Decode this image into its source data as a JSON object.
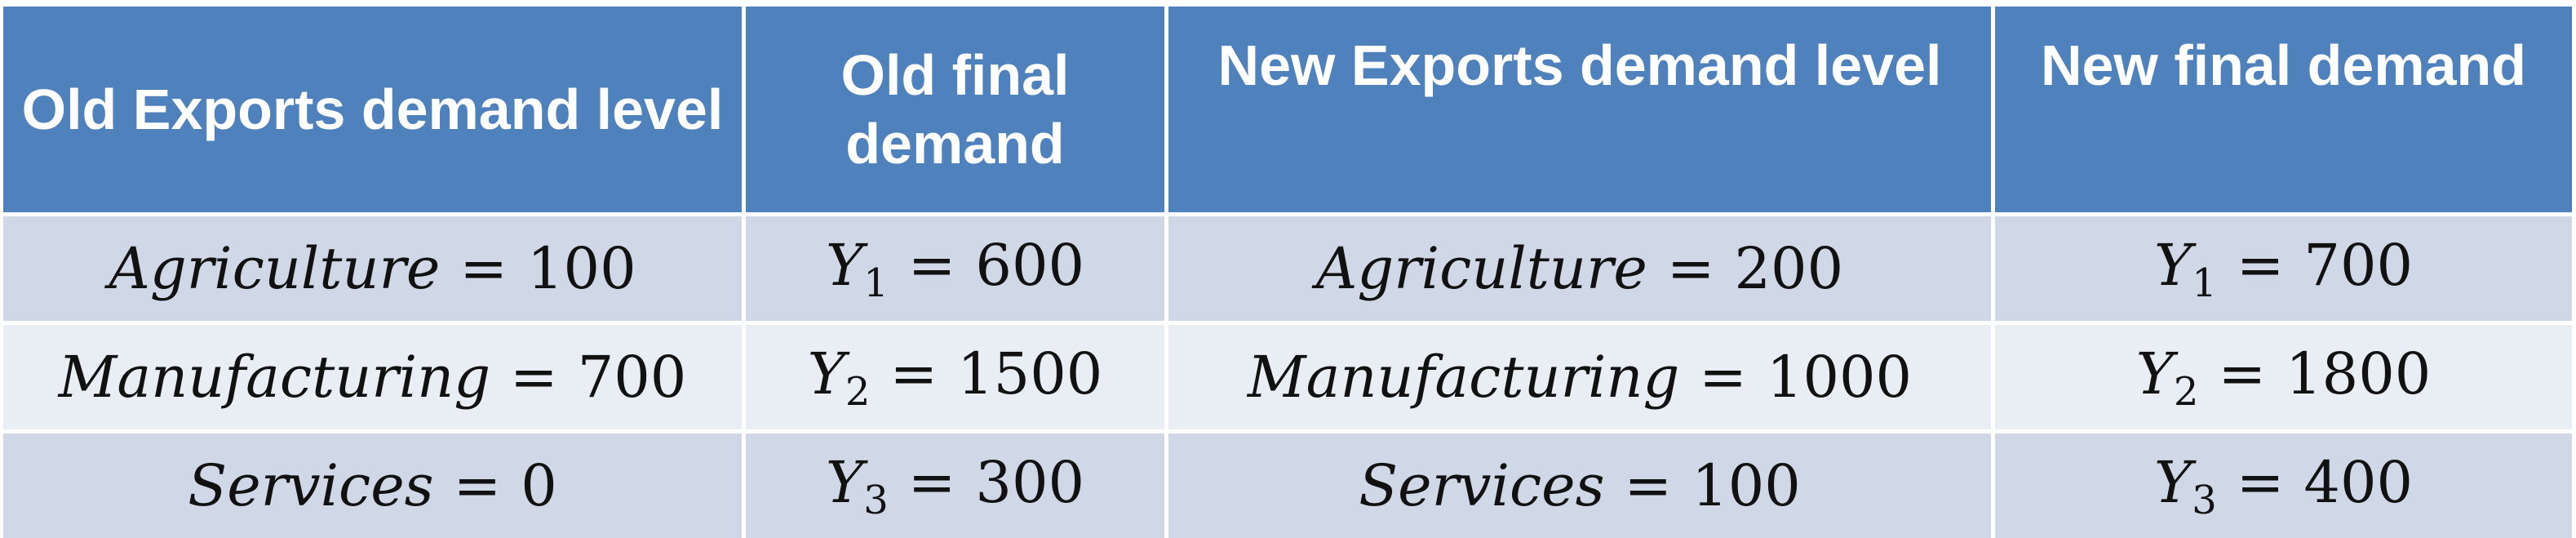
{
  "headers": [
    "Old Exports demand level",
    "Old final demand",
    "New Exports demand level",
    "New final demand"
  ],
  "rows": [
    {
      "old_export": {
        "label": "Agriculture",
        "value": "100"
      },
      "old_final": {
        "var": "Y",
        "sub": "1",
        "value": "600"
      },
      "new_export": {
        "label": "Agriculture",
        "value": "200"
      },
      "new_final": {
        "var": "Y",
        "sub": "1",
        "value": "700"
      }
    },
    {
      "old_export": {
        "label": "Manufacturing",
        "value": "700"
      },
      "old_final": {
        "var": "Y",
        "sub": "2",
        "value": "1500"
      },
      "new_export": {
        "label": "Manufacturing",
        "value": "1000"
      },
      "new_final": {
        "var": "Y",
        "sub": "2",
        "value": "1800"
      }
    },
    {
      "old_export": {
        "label": "Services",
        "value": "0"
      },
      "old_final": {
        "var": "Y",
        "sub": "3",
        "value": "300"
      },
      "new_export": {
        "label": "Services",
        "value": "100"
      },
      "new_final": {
        "var": "Y",
        "sub": "3",
        "value": "400"
      }
    }
  ],
  "equals_sign": "=",
  "colors": {
    "header_bg": "#4f81bd",
    "row_odd_bg": "#d0d8e8",
    "row_even_bg": "#e9edf4"
  }
}
